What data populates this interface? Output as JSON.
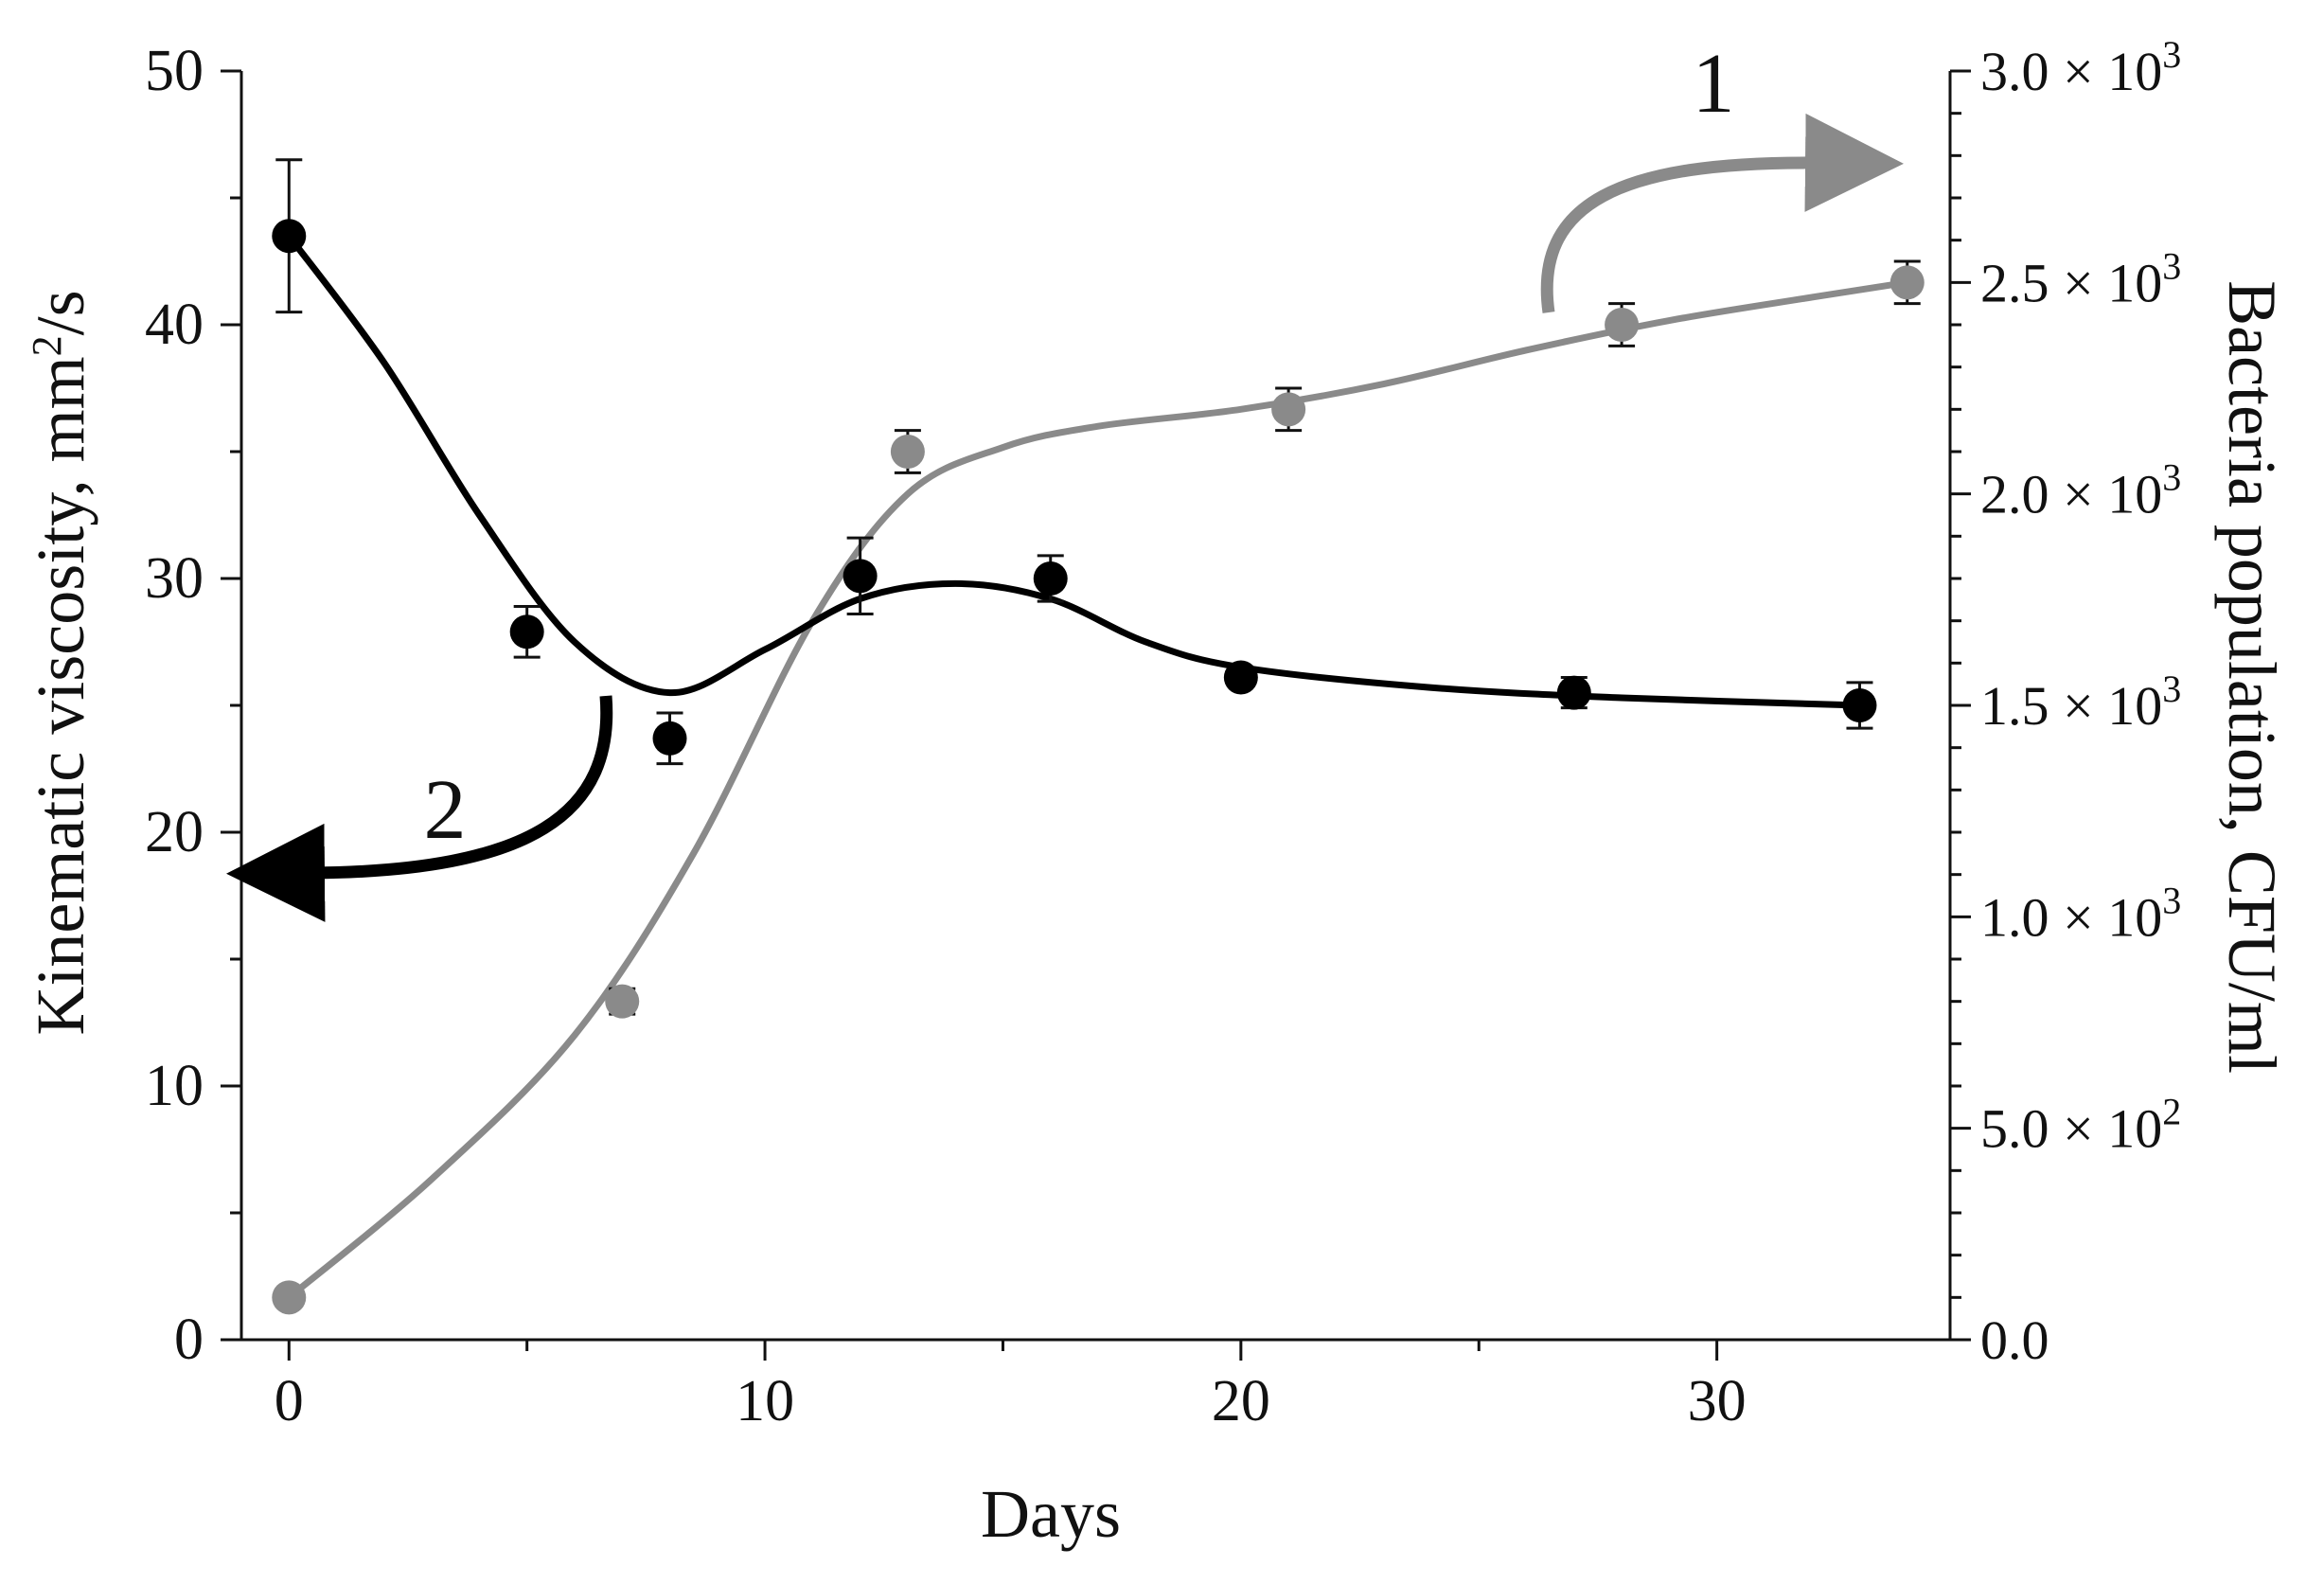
{
  "chart_data": {
    "type": "scatter",
    "xlabel": "Days",
    "ylabel_left": "Kinematic viscosity, mm2/s",
    "ylabel_left_parts": {
      "main": "Kinematic viscosity, mm",
      "sup": "2",
      "tail": "/s"
    },
    "ylabel_right": "Bacteria population, CFU/ml",
    "xlim": [
      -1,
      34.9
    ],
    "ylim_left": [
      0,
      50
    ],
    "ylim_right": [
      0,
      3000
    ],
    "x_ticks": [
      {
        "value": 0,
        "label": "0"
      },
      {
        "value": 10,
        "label": "10"
      },
      {
        "value": 20,
        "label": "20"
      },
      {
        "value": 30,
        "label": "30"
      }
    ],
    "y_left_ticks": [
      {
        "value": 0,
        "label": "0"
      },
      {
        "value": 10,
        "label": "10"
      },
      {
        "value": 20,
        "label": "20"
      },
      {
        "value": 30,
        "label": "30"
      },
      {
        "value": 40,
        "label": "40"
      },
      {
        "value": 50,
        "label": "50"
      }
    ],
    "y_right_ticks": [
      {
        "value": 0,
        "label": "0.0"
      },
      {
        "value": 500,
        "mantissa": "5.0",
        "base": "× 10",
        "exp": "2"
      },
      {
        "value": 1000,
        "mantissa": "1.0",
        "base": "× 10",
        "exp": "3"
      },
      {
        "value": 1500,
        "mantissa": "1.5",
        "base": "× 10",
        "exp": "3"
      },
      {
        "value": 2000,
        "mantissa": "2.0",
        "base": "× 10",
        "exp": "3"
      },
      {
        "value": 2500,
        "mantissa": "2.5",
        "base": "× 10",
        "exp": "3"
      },
      {
        "value": 3000,
        "mantissa": "3.0",
        "base": "× 10",
        "exp": "3"
      }
    ],
    "series": [
      {
        "name": "1",
        "label": "1",
        "axis": "right",
        "color": "#8a8a8a",
        "points": [
          {
            "x": 0,
            "y": 100,
            "err": 20
          },
          {
            "x": 7,
            "y": 800,
            "err": 30
          },
          {
            "x": 13,
            "y": 2100,
            "err": 50
          },
          {
            "x": 21,
            "y": 2200,
            "err": 50
          },
          {
            "x": 28,
            "y": 2400,
            "err": 50
          },
          {
            "x": 34,
            "y": 2500,
            "err": 50
          }
        ],
        "fit": [
          [
            0,
            100
          ],
          [
            3,
            380
          ],
          [
            6,
            720
          ],
          [
            8.5,
            1150
          ],
          [
            11,
            1700
          ],
          [
            13,
            2000
          ],
          [
            15,
            2110
          ],
          [
            17,
            2160
          ],
          [
            20,
            2200
          ],
          [
            23,
            2260
          ],
          [
            26,
            2340
          ],
          [
            29,
            2410
          ],
          [
            32,
            2465
          ],
          [
            34,
            2500
          ]
        ]
      },
      {
        "name": "2",
        "label": "2",
        "axis": "left",
        "color": "#000000",
        "points": [
          {
            "x": 0,
            "y": 43.5,
            "err": 3.0
          },
          {
            "x": 5,
            "y": 27.9,
            "err": 1.0
          },
          {
            "x": 8,
            "y": 23.7,
            "err": 1.0
          },
          {
            "x": 12,
            "y": 30.1,
            "err": 1.5
          },
          {
            "x": 16,
            "y": 30.0,
            "err": 0.9
          },
          {
            "x": 20,
            "y": 26.1,
            "err": 0.3
          },
          {
            "x": 27,
            "y": 25.5,
            "err": 0.6
          },
          {
            "x": 33,
            "y": 25.0,
            "err": 0.9
          }
        ],
        "fit": [
          [
            0,
            43.5
          ],
          [
            2,
            38.5
          ],
          [
            4,
            32.5
          ],
          [
            6,
            27.5
          ],
          [
            8,
            25.5
          ],
          [
            10,
            27.2
          ],
          [
            12,
            29.2
          ],
          [
            14,
            29.8
          ],
          [
            16,
            29.2
          ],
          [
            18,
            27.5
          ],
          [
            20,
            26.5
          ],
          [
            24,
            25.7
          ],
          [
            28,
            25.3
          ],
          [
            33,
            25.0
          ]
        ]
      }
    ]
  }
}
